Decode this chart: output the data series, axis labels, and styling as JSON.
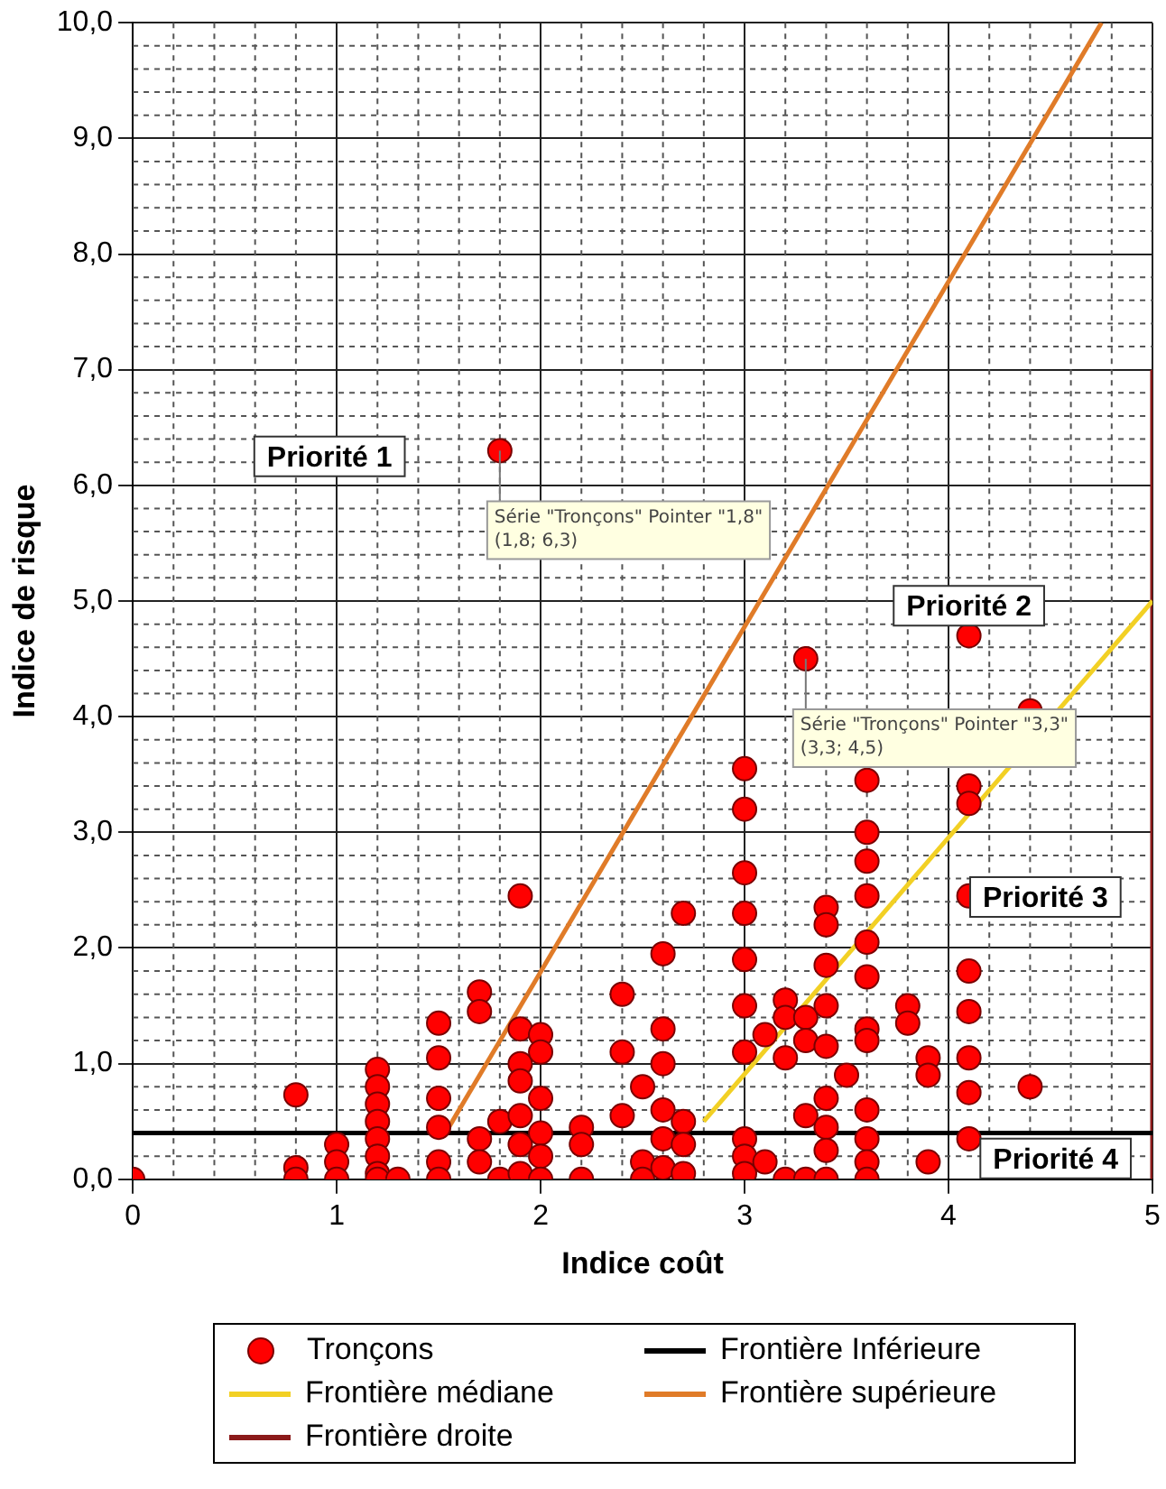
{
  "chart_data": {
    "type": "scatter",
    "xlabel": "Indice coût",
    "ylabel": "Indice de risque",
    "xlim": [
      0,
      5
    ],
    "xticks": [
      0,
      1,
      2,
      3,
      4,
      5
    ],
    "ylim": [
      0,
      10
    ],
    "yticks": [
      {
        "value": 0,
        "label": "0,0"
      },
      {
        "value": 1,
        "label": "1,0"
      },
      {
        "value": 2,
        "label": "2,0"
      },
      {
        "value": 3,
        "label": "3,0"
      },
      {
        "value": 4,
        "label": "4,0"
      },
      {
        "value": 5,
        "label": "5,0"
      },
      {
        "value": 6,
        "label": "6,0"
      },
      {
        "value": 7,
        "label": "7,0"
      },
      {
        "value": 8,
        "label": "8,0"
      },
      {
        "value": 9,
        "label": "9,0"
      },
      {
        "value": 10,
        "label": "10,0"
      }
    ],
    "grid": true,
    "legend": "bottom",
    "marker": "circle",
    "line_style": "solid",
    "series": [
      {
        "name": "Tronçons",
        "color": "#ff0000",
        "x": [
          0,
          0.8,
          0.8,
          0.8,
          1,
          1,
          1,
          1.2,
          1.2,
          1.2,
          1.2,
          1.2,
          1.2,
          1.2,
          1.2,
          1.3,
          1.5,
          1.5,
          1.5,
          1.5,
          1.5,
          1.5,
          1.7,
          1.7,
          1.7,
          1.7,
          1.8,
          1.8,
          1.8,
          1.9,
          1.9,
          1.9,
          1.9,
          1.9,
          1.9,
          1.9,
          2,
          2,
          2,
          2,
          2,
          2,
          2.2,
          2.2,
          2.2,
          2.4,
          2.4,
          2.4,
          2.5,
          2.5,
          2.5,
          2.6,
          2.6,
          2.6,
          2.6,
          2.6,
          2.6,
          2.7,
          2.7,
          2.7,
          2.7,
          3,
          3,
          3,
          3,
          3,
          3,
          3,
          3,
          3,
          3,
          3.1,
          3.1,
          3.2,
          3.2,
          3.2,
          3.2,
          3.3,
          3.3,
          3.3,
          3.3,
          3.3,
          3.4,
          3.4,
          3.4,
          3.4,
          3.4,
          3.4,
          3.4,
          3.4,
          3.4,
          3.5,
          3.6,
          3.6,
          3.6,
          3.6,
          3.6,
          3.6,
          3.6,
          3.6,
          3.6,
          3.6,
          3.6,
          3.6,
          3.8,
          3.8,
          3.9,
          3.9,
          3.9,
          4.1,
          4.1,
          4.1,
          4.1,
          4.1,
          4.1,
          4.1,
          4.1,
          4.1,
          4.4,
          4.4
        ],
        "values": [
          0,
          0.73,
          0.1,
          0,
          0.3,
          0.15,
          0,
          0.95,
          0.8,
          0.65,
          0.5,
          0.35,
          0.2,
          0.05,
          0,
          0,
          1.35,
          1.05,
          0.7,
          0.45,
          0.15,
          0,
          1.62,
          1.45,
          0.35,
          0.15,
          6.3,
          0.5,
          0,
          2.45,
          1.3,
          1,
          0.85,
          0.55,
          0.3,
          0.05,
          1.25,
          1.1,
          0.7,
          0.4,
          0.2,
          0,
          0.45,
          0.3,
          0,
          1.6,
          1.1,
          0.55,
          0.8,
          0.15,
          0,
          1.95,
          1.3,
          1,
          0.6,
          0.35,
          0.1,
          2.3,
          0.5,
          0.3,
          0.05,
          3.55,
          3.2,
          2.65,
          2.3,
          1.9,
          1.5,
          1.1,
          0.35,
          0.2,
          0.05,
          1.25,
          0.15,
          1.55,
          1.4,
          1.05,
          0,
          4.5,
          1.4,
          1.2,
          0.55,
          0,
          2.35,
          2.2,
          1.85,
          1.5,
          1.15,
          0.7,
          0.45,
          0.25,
          0,
          0.9,
          3.45,
          3,
          2.75,
          2.45,
          2.05,
          1.75,
          1.3,
          1.2,
          0.6,
          0.35,
          0.15,
          0,
          1.5,
          1.35,
          1.05,
          0.9,
          0.15,
          4.7,
          3.4,
          3.25,
          2.45,
          1.8,
          1.45,
          1.05,
          0.75,
          0.35,
          4.05,
          0.8
        ]
      },
      {
        "name": "Frontière Inférieure",
        "type": "line",
        "marker": "none",
        "color": "#000000",
        "x": [
          0,
          5
        ],
        "values": [
          0.4,
          0.4
        ]
      },
      {
        "name": "Frontière médiane",
        "type": "line",
        "marker": "none",
        "color": "#f2d024",
        "x": [
          2.8,
          5
        ],
        "values": [
          0.5,
          5
        ]
      },
      {
        "name": "Frontière supérieure",
        "type": "line",
        "marker": "none",
        "color": "#e07b28",
        "x": [
          1.55,
          4.75
        ],
        "values": [
          0.45,
          10
        ]
      },
      {
        "name": "Frontière droite",
        "type": "line",
        "marker": "none",
        "color": "#8b1a1a",
        "x": [
          5,
          5
        ],
        "values": [
          0,
          7
        ]
      }
    ],
    "annotations": [
      "Priorité 1",
      "Priorité 2",
      "Priorité 3",
      "Priorité 4",
      {
        "text": "Série \"Tronçons\" Pointer \"1,8\"\n(1,8; 6,3)",
        "x": 1.8,
        "y": 6.3
      },
      {
        "text": "Série \"Tronçons\" Pointer \"3,3\"\n(3,3; 4,5)",
        "x": 3.3,
        "y": 4.5
      }
    ]
  }
}
